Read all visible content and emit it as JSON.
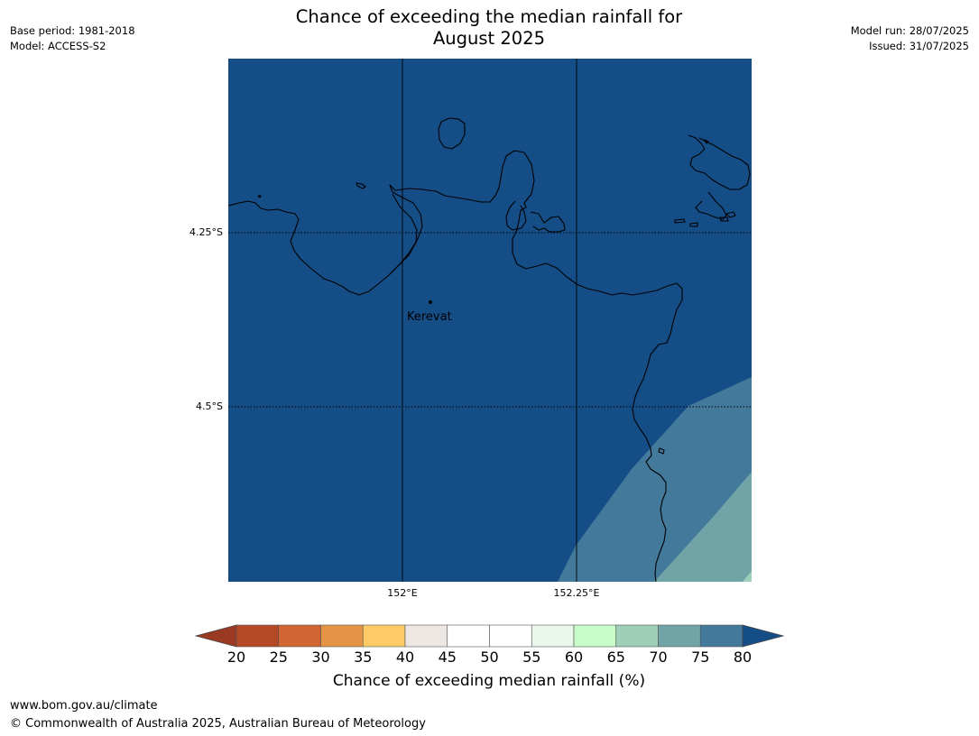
{
  "title": {
    "line1": "Chance of exceeding the median rainfall for",
    "line2": "August 2025"
  },
  "meta_left": {
    "base_period": "Base period: 1981-2018",
    "model": "Model: ACCESS-S2"
  },
  "meta_right": {
    "model_run": "Model run: 28/07/2025",
    "issued": "Issued: 31/07/2025"
  },
  "map": {
    "place_label": "Kerevat",
    "lat_labels": [
      "4.25°S",
      "4.5°S"
    ],
    "lon_labels": [
      "152°E",
      "152.25°E"
    ],
    "colors": {
      "band_80_plus": "#154d87",
      "band_75_80": "#43799a",
      "band_70_75": "#70a4a6",
      "band_65_70": "#9ecfb8"
    }
  },
  "colorbar": {
    "ticks": [
      "20",
      "25",
      "30",
      "35",
      "40",
      "45",
      "50",
      "55",
      "60",
      "65",
      "70",
      "75",
      "80"
    ],
    "under_color": "#9a3a22",
    "over_color": "#154d87",
    "colors": [
      "#b34a25",
      "#d16633",
      "#e39445",
      "#fdcb66",
      "#ede7e4",
      "#ffffff",
      "#ffffff",
      "#eaf7ec",
      "#c8fdca",
      "#9ecfb8",
      "#70a4a6",
      "#43799a"
    ],
    "label": "Chance of exceeding median rainfall (%)"
  },
  "footer": {
    "url": "www.bom.gov.au/climate",
    "copyright": "© Commonwealth of Australia 2025, Australian Bureau of Meteorology"
  }
}
